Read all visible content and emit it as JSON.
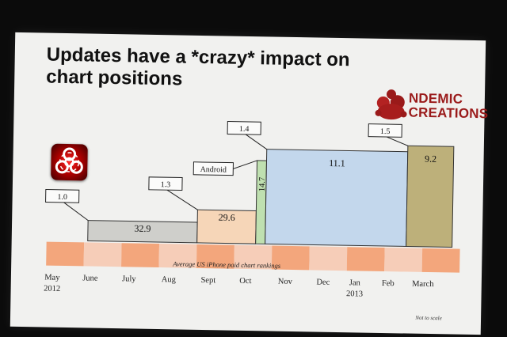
{
  "slide": {
    "title_line1": "Updates have a *crazy* impact on",
    "title_line2": "chart positions",
    "brand_line1": "NDEMIC",
    "brand_line2": "CREATIONS",
    "footnote": "Not to scale",
    "brand_color": "#9a1a1a",
    "icon": "biohazard-icon"
  },
  "chart_data": {
    "type": "bar",
    "xlabel": "Average US iPhone paid chart rankings",
    "categories": [
      {
        "label": "May",
        "sub": "2012"
      },
      {
        "label": "June",
        "sub": ""
      },
      {
        "label": "July",
        "sub": ""
      },
      {
        "label": "Aug",
        "sub": ""
      },
      {
        "label": "Sept",
        "sub": ""
      },
      {
        "label": "Oct",
        "sub": ""
      },
      {
        "label": "Nov",
        "sub": ""
      },
      {
        "label": "Dec",
        "sub": ""
      },
      {
        "label": "Jan",
        "sub": "2013"
      },
      {
        "label": "Feb",
        "sub": ""
      },
      {
        "label": "March",
        "sub": ""
      }
    ],
    "bars": [
      {
        "value": 32.9,
        "label": "32.9",
        "color": "#cfcfcb"
      },
      {
        "value": 29.6,
        "label": "29.6",
        "color": "#f6d6b8"
      },
      {
        "value": 14.7,
        "label": "14.7",
        "color": "#bfe0b0"
      },
      {
        "value": 11.1,
        "label": "11.1",
        "color": "#c3d7ec"
      },
      {
        "value": 9.2,
        "label": "9.2",
        "color": "#bdb07a"
      }
    ],
    "callouts": [
      "1.0",
      "1.3",
      "Android",
      "1.4",
      "1.5"
    ],
    "timeline_colors": [
      "#f3a67c",
      "#f6cdb8"
    ]
  }
}
